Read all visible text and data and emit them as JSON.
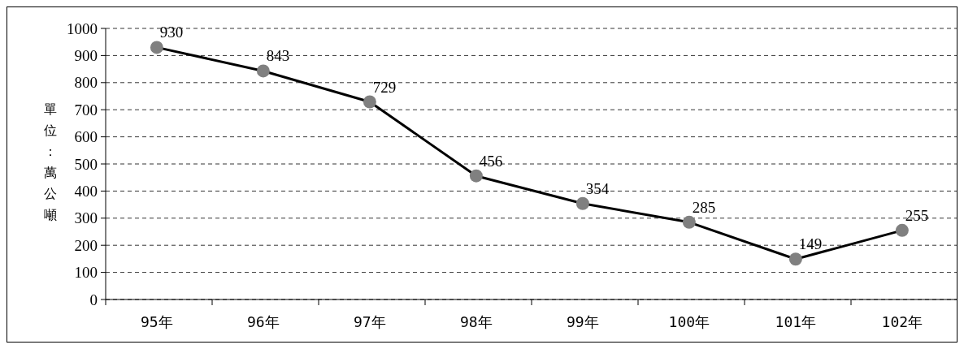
{
  "chart_data": {
    "type": "line",
    "ylabel": "單位：萬公噸",
    "categories": [
      "95年",
      "96年",
      "97年",
      "98年",
      "99年",
      "100年",
      "101年",
      "102年"
    ],
    "series": [
      {
        "color": "#000000",
        "values": [
          930,
          843,
          729,
          456,
          354,
          285,
          149,
          255
        ]
      }
    ],
    "ylim": [
      0,
      1000
    ],
    "yticks": [
      0,
      100,
      200,
      300,
      400,
      500,
      600,
      700,
      800,
      900,
      1000
    ],
    "grid": "y",
    "marker": "circle",
    "line_style": "solid",
    "data_labels": true
  }
}
